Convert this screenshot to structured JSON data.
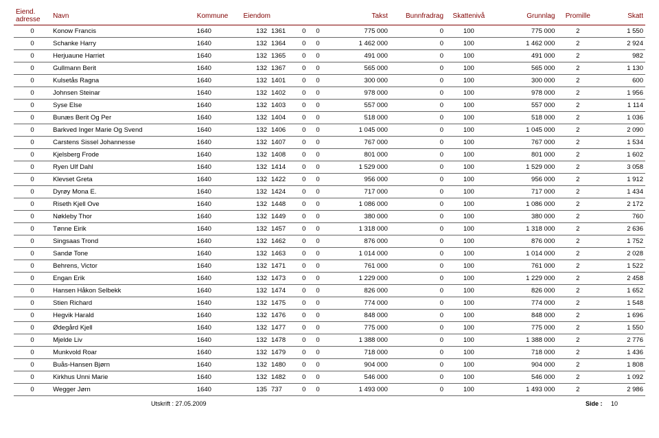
{
  "headers": {
    "eiend": "Eiend. adresse",
    "navn": "Navn",
    "kommune": "Kommune",
    "eiendom": "Eiendom",
    "takst": "Takst",
    "bunnfradrag": "Bunnfradrag",
    "skatteniva": "Skattenivå",
    "grunnlag": "Grunnlag",
    "promille": "Promille",
    "skatt": "Skatt"
  },
  "rows": [
    {
      "eiend": "0",
      "navn": "Konow Francis",
      "komm": "1640",
      "e1": "132",
      "e2": "1361",
      "e3": "0",
      "e4": "0",
      "takst": "775 000",
      "bunn": "0",
      "skniv": "100",
      "grunn": "775 000",
      "prom": "2",
      "skatt": "1 550"
    },
    {
      "eiend": "0",
      "navn": "Schanke Harry",
      "komm": "1640",
      "e1": "132",
      "e2": "1364",
      "e3": "0",
      "e4": "0",
      "takst": "1 462 000",
      "bunn": "0",
      "skniv": "100",
      "grunn": "1 462 000",
      "prom": "2",
      "skatt": "2 924"
    },
    {
      "eiend": "0",
      "navn": "Herjuaune Harriet",
      "komm": "1640",
      "e1": "132",
      "e2": "1365",
      "e3": "0",
      "e4": "0",
      "takst": "491 000",
      "bunn": "0",
      "skniv": "100",
      "grunn": "491 000",
      "prom": "2",
      "skatt": "982"
    },
    {
      "eiend": "0",
      "navn": "Gullmann Berit",
      "komm": "1640",
      "e1": "132",
      "e2": "1367",
      "e3": "0",
      "e4": "0",
      "takst": "565 000",
      "bunn": "0",
      "skniv": "100",
      "grunn": "565 000",
      "prom": "2",
      "skatt": "1 130"
    },
    {
      "eiend": "0",
      "navn": "Kulsetås Ragna",
      "komm": "1640",
      "e1": "132",
      "e2": "1401",
      "e3": "0",
      "e4": "0",
      "takst": "300 000",
      "bunn": "0",
      "skniv": "100",
      "grunn": "300 000",
      "prom": "2",
      "skatt": "600"
    },
    {
      "eiend": "0",
      "navn": "Johnsen Steinar",
      "komm": "1640",
      "e1": "132",
      "e2": "1402",
      "e3": "0",
      "e4": "0",
      "takst": "978 000",
      "bunn": "0",
      "skniv": "100",
      "grunn": "978 000",
      "prom": "2",
      "skatt": "1 956"
    },
    {
      "eiend": "0",
      "navn": "Syse Else",
      "komm": "1640",
      "e1": "132",
      "e2": "1403",
      "e3": "0",
      "e4": "0",
      "takst": "557 000",
      "bunn": "0",
      "skniv": "100",
      "grunn": "557 000",
      "prom": "2",
      "skatt": "1 114"
    },
    {
      "eiend": "0",
      "navn": "Bunæs Berit Og Per",
      "komm": "1640",
      "e1": "132",
      "e2": "1404",
      "e3": "0",
      "e4": "0",
      "takst": "518 000",
      "bunn": "0",
      "skniv": "100",
      "grunn": "518 000",
      "prom": "2",
      "skatt": "1 036"
    },
    {
      "eiend": "0",
      "navn": "Barkved Inger Marie Og Svend",
      "komm": "1640",
      "e1": "132",
      "e2": "1406",
      "e3": "0",
      "e4": "0",
      "takst": "1 045 000",
      "bunn": "0",
      "skniv": "100",
      "grunn": "1 045 000",
      "prom": "2",
      "skatt": "2 090"
    },
    {
      "eiend": "0",
      "navn": "Carstens Sissel Johannesse",
      "komm": "1640",
      "e1": "132",
      "e2": "1407",
      "e3": "0",
      "e4": "0",
      "takst": "767 000",
      "bunn": "0",
      "skniv": "100",
      "grunn": "767 000",
      "prom": "2",
      "skatt": "1 534"
    },
    {
      "eiend": "0",
      "navn": "Kjelsberg Frode",
      "komm": "1640",
      "e1": "132",
      "e2": "1408",
      "e3": "0",
      "e4": "0",
      "takst": "801 000",
      "bunn": "0",
      "skniv": "100",
      "grunn": "801 000",
      "prom": "2",
      "skatt": "1 602"
    },
    {
      "eiend": "0",
      "navn": "Ryen Ulf Dahl",
      "komm": "1640",
      "e1": "132",
      "e2": "1414",
      "e3": "0",
      "e4": "0",
      "takst": "1 529 000",
      "bunn": "0",
      "skniv": "100",
      "grunn": "1 529 000",
      "prom": "2",
      "skatt": "3 058"
    },
    {
      "eiend": "0",
      "navn": "Klevset Greta",
      "komm": "1640",
      "e1": "132",
      "e2": "1422",
      "e3": "0",
      "e4": "0",
      "takst": "956 000",
      "bunn": "0",
      "skniv": "100",
      "grunn": "956 000",
      "prom": "2",
      "skatt": "1 912"
    },
    {
      "eiend": "0",
      "navn": "Dyrøy Mona E.",
      "komm": "1640",
      "e1": "132",
      "e2": "1424",
      "e3": "0",
      "e4": "0",
      "takst": "717 000",
      "bunn": "0",
      "skniv": "100",
      "grunn": "717 000",
      "prom": "2",
      "skatt": "1 434"
    },
    {
      "eiend": "0",
      "navn": "Riseth Kjell Ove",
      "komm": "1640",
      "e1": "132",
      "e2": "1448",
      "e3": "0",
      "e4": "0",
      "takst": "1 086 000",
      "bunn": "0",
      "skniv": "100",
      "grunn": "1 086 000",
      "prom": "2",
      "skatt": "2 172"
    },
    {
      "eiend": "0",
      "navn": "Nøkleby Thor",
      "komm": "1640",
      "e1": "132",
      "e2": "1449",
      "e3": "0",
      "e4": "0",
      "takst": "380 000",
      "bunn": "0",
      "skniv": "100",
      "grunn": "380 000",
      "prom": "2",
      "skatt": "760"
    },
    {
      "eiend": "0",
      "navn": "Tønne Eirik",
      "komm": "1640",
      "e1": "132",
      "e2": "1457",
      "e3": "0",
      "e4": "0",
      "takst": "1 318 000",
      "bunn": "0",
      "skniv": "100",
      "grunn": "1 318 000",
      "prom": "2",
      "skatt": "2 636"
    },
    {
      "eiend": "0",
      "navn": "Singsaas Trond",
      "komm": "1640",
      "e1": "132",
      "e2": "1462",
      "e3": "0",
      "e4": "0",
      "takst": "876 000",
      "bunn": "0",
      "skniv": "100",
      "grunn": "876 000",
      "prom": "2",
      "skatt": "1 752"
    },
    {
      "eiend": "0",
      "navn": "Sandø Tone",
      "komm": "1640",
      "e1": "132",
      "e2": "1463",
      "e3": "0",
      "e4": "0",
      "takst": "1 014 000",
      "bunn": "0",
      "skniv": "100",
      "grunn": "1 014 000",
      "prom": "2",
      "skatt": "2 028"
    },
    {
      "eiend": "0",
      "navn": "Behrens, Victor",
      "komm": "1640",
      "e1": "132",
      "e2": "1471",
      "e3": "0",
      "e4": "0",
      "takst": "761 000",
      "bunn": "0",
      "skniv": "100",
      "grunn": "761 000",
      "prom": "2",
      "skatt": "1 522"
    },
    {
      "eiend": "0",
      "navn": "Engan Erik",
      "komm": "1640",
      "e1": "132",
      "e2": "1473",
      "e3": "0",
      "e4": "0",
      "takst": "1 229 000",
      "bunn": "0",
      "skniv": "100",
      "grunn": "1 229 000",
      "prom": "2",
      "skatt": "2 458"
    },
    {
      "eiend": "0",
      "navn": "Hansen Håkon Selbekk",
      "komm": "1640",
      "e1": "132",
      "e2": "1474",
      "e3": "0",
      "e4": "0",
      "takst": "826 000",
      "bunn": "0",
      "skniv": "100",
      "grunn": "826 000",
      "prom": "2",
      "skatt": "1 652"
    },
    {
      "eiend": "0",
      "navn": "Stien Richard",
      "komm": "1640",
      "e1": "132",
      "e2": "1475",
      "e3": "0",
      "e4": "0",
      "takst": "774 000",
      "bunn": "0",
      "skniv": "100",
      "grunn": "774 000",
      "prom": "2",
      "skatt": "1 548"
    },
    {
      "eiend": "0",
      "navn": "Hegvik Harald",
      "komm": "1640",
      "e1": "132",
      "e2": "1476",
      "e3": "0",
      "e4": "0",
      "takst": "848 000",
      "bunn": "0",
      "skniv": "100",
      "grunn": "848 000",
      "prom": "2",
      "skatt": "1 696"
    },
    {
      "eiend": "0",
      "navn": "Ødegård Kjell",
      "komm": "1640",
      "e1": "132",
      "e2": "1477",
      "e3": "0",
      "e4": "0",
      "takst": "775 000",
      "bunn": "0",
      "skniv": "100",
      "grunn": "775 000",
      "prom": "2",
      "skatt": "1 550"
    },
    {
      "eiend": "0",
      "navn": "Mjelde Liv",
      "komm": "1640",
      "e1": "132",
      "e2": "1478",
      "e3": "0",
      "e4": "0",
      "takst": "1 388 000",
      "bunn": "0",
      "skniv": "100",
      "grunn": "1 388 000",
      "prom": "2",
      "skatt": "2 776"
    },
    {
      "eiend": "0",
      "navn": "Munkvold Roar",
      "komm": "1640",
      "e1": "132",
      "e2": "1479",
      "e3": "0",
      "e4": "0",
      "takst": "718 000",
      "bunn": "0",
      "skniv": "100",
      "grunn": "718 000",
      "prom": "2",
      "skatt": "1 436"
    },
    {
      "eiend": "0",
      "navn": "Buås-Hansen Bjørn",
      "komm": "1640",
      "e1": "132",
      "e2": "1480",
      "e3": "0",
      "e4": "0",
      "takst": "904 000",
      "bunn": "0",
      "skniv": "100",
      "grunn": "904 000",
      "prom": "2",
      "skatt": "1 808"
    },
    {
      "eiend": "0",
      "navn": "Kirkhus Unni Marie",
      "komm": "1640",
      "e1": "132",
      "e2": "1482",
      "e3": "0",
      "e4": "0",
      "takst": "546 000",
      "bunn": "0",
      "skniv": "100",
      "grunn": "546 000",
      "prom": "2",
      "skatt": "1 092"
    },
    {
      "eiend": "0",
      "navn": "Wegger Jørn",
      "komm": "1640",
      "e1": "135",
      "e2": "737",
      "e3": "0",
      "e4": "0",
      "takst": "1 493 000",
      "bunn": "0",
      "skniv": "100",
      "grunn": "1 493 000",
      "prom": "2",
      "skatt": "2 986"
    }
  ],
  "footer": {
    "utskrift": "Utskrift : 27.05.2009",
    "side_label": "Side :",
    "side_num": "10"
  }
}
